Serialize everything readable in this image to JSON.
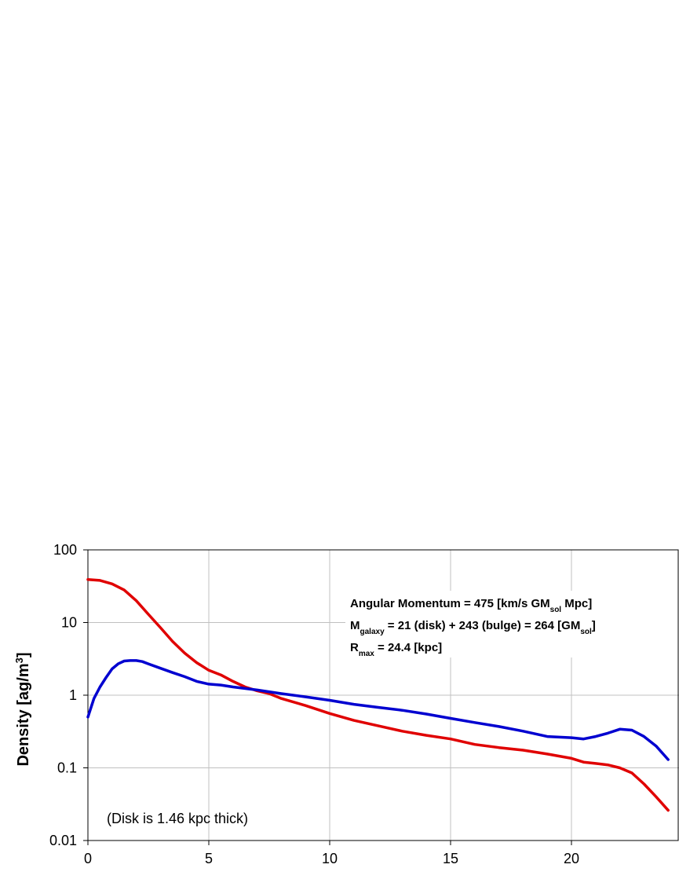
{
  "chart_data": {
    "type": "line",
    "title": "",
    "xlabel": "",
    "ylabel": {
      "main": "Density [ag/m",
      "sup": "3",
      "close": "]"
    },
    "xlim": [
      0,
      24
    ],
    "ylim": [
      0.01,
      100
    ],
    "yscale": "log",
    "grid": true,
    "x_ticks": [
      0,
      5,
      10,
      15,
      20
    ],
    "x_tick_labels": [
      "0",
      "5",
      "10",
      "15",
      "20"
    ],
    "y_ticks": [
      0.01,
      0.1,
      1,
      10,
      100
    ],
    "y_tick_labels": [
      "0.01",
      "0.1",
      "1",
      "10",
      "100"
    ],
    "annotations": {
      "line1": {
        "a": "Angular Momentum = 475 [km/s GM",
        "sub": "sol",
        "b": " Mpc]"
      },
      "line2": {
        "a": "M",
        "sub1": "galaxy",
        "b": " = 21 (disk) + 243 (bulge) = 264 [GM",
        "sub2": "sol",
        "c": "]"
      },
      "line3": {
        "a": "R",
        "sub": "max",
        "b": " = 24.4 [kpc]"
      },
      "note": "(Disk is 1.46 kpc thick)"
    },
    "series": [
      {
        "color": "#e00000",
        "x": [
          0,
          0.5,
          1,
          1.5,
          2,
          2.5,
          3,
          3.5,
          4,
          4.5,
          5,
          5.5,
          6,
          6.5,
          7,
          7.5,
          8,
          9,
          10,
          11,
          12,
          13,
          14,
          15,
          16,
          17,
          18,
          19,
          20,
          20.5,
          21,
          21.5,
          22,
          22.5,
          23,
          23.5,
          24
        ],
        "y": [
          39,
          38,
          34,
          28,
          20,
          13,
          8.5,
          5.5,
          3.8,
          2.8,
          2.2,
          1.9,
          1.55,
          1.3,
          1.15,
          1.05,
          0.9,
          0.72,
          0.56,
          0.45,
          0.38,
          0.32,
          0.28,
          0.25,
          0.21,
          0.19,
          0.175,
          0.155,
          0.135,
          0.12,
          0.115,
          0.11,
          0.1,
          0.085,
          0.06,
          0.04,
          0.026
        ]
      },
      {
        "color": "#0000d0",
        "x": [
          0,
          0.25,
          0.5,
          0.75,
          1,
          1.25,
          1.5,
          1.75,
          2,
          2.25,
          2.5,
          3,
          3.5,
          4,
          4.5,
          5,
          5.5,
          6,
          7,
          8,
          9,
          10,
          11,
          12,
          13,
          14,
          15,
          16,
          17,
          18,
          19,
          20,
          20.5,
          21,
          21.5,
          22,
          22.5,
          23,
          23.5,
          24
        ],
        "y": [
          0.5,
          0.9,
          1.3,
          1.75,
          2.3,
          2.7,
          2.95,
          3.0,
          3.0,
          2.9,
          2.7,
          2.35,
          2.05,
          1.8,
          1.55,
          1.42,
          1.38,
          1.3,
          1.18,
          1.05,
          0.95,
          0.85,
          0.75,
          0.68,
          0.62,
          0.55,
          0.48,
          0.42,
          0.37,
          0.32,
          0.27,
          0.26,
          0.25,
          0.27,
          0.3,
          0.34,
          0.33,
          0.27,
          0.2,
          0.13
        ]
      }
    ]
  }
}
